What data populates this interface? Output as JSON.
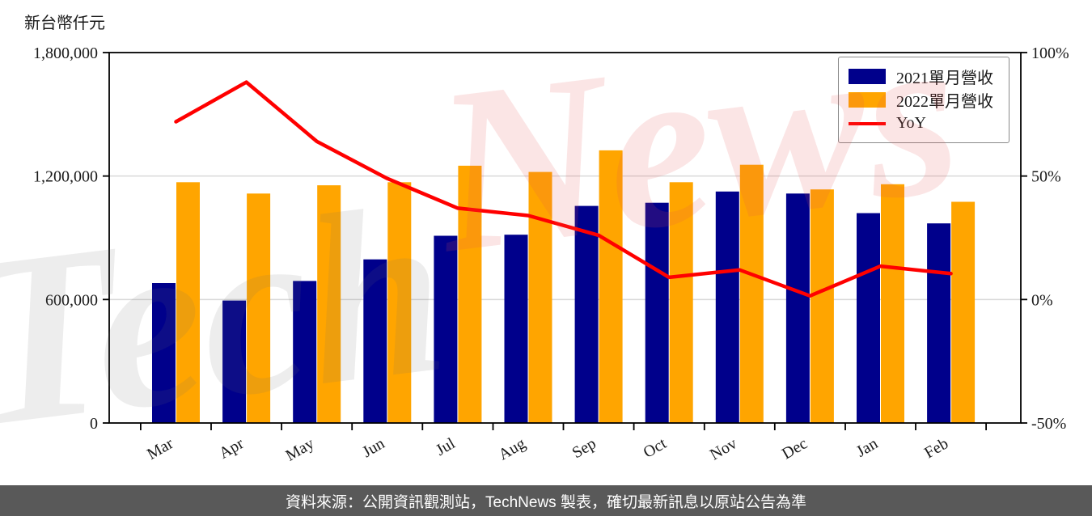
{
  "header": {
    "unit_label": "新台幣仟元"
  },
  "legend": {
    "items": [
      {
        "label": "2021單月營收",
        "color": "#00008B",
        "type": "bar"
      },
      {
        "label": "2022單月營收",
        "color": "#FFA500",
        "type": "bar"
      },
      {
        "label": "YoY",
        "color": "#FF0000",
        "type": "line"
      }
    ]
  },
  "watermark": {
    "part1": "Tech",
    "part2": "News"
  },
  "footer": {
    "text": "資料來源：公開資訊觀測站，TechNews 製表，確切最新訊息以原站公告為準",
    "background": "#595959",
    "text_color": "#ffffff"
  },
  "chart_data": {
    "type": "bar",
    "title": "",
    "xlabel": "",
    "ylabel": "新台幣仟元",
    "categories": [
      "Mar",
      "Apr",
      "May",
      "Jun",
      "Jul",
      "Aug",
      "Sep",
      "Oct",
      "Nov",
      "Dec",
      "Jan",
      "Feb"
    ],
    "series": [
      {
        "name": "2021單月營收",
        "type": "bar",
        "axis": "left",
        "color": "#00008B",
        "values": [
          680000,
          595000,
          690000,
          795000,
          910000,
          915000,
          1055000,
          1070000,
          1125000,
          1115000,
          1020000,
          970000
        ]
      },
      {
        "name": "2022單月營收",
        "type": "bar",
        "axis": "left",
        "color": "#FFA500",
        "values": [
          1170000,
          1115000,
          1155000,
          1170000,
          1250000,
          1220000,
          1325000,
          1170000,
          1255000,
          1135000,
          1160000,
          1075000
        ]
      },
      {
        "name": "YoY",
        "type": "line",
        "axis": "right",
        "color": "#FF0000",
        "unit": "%",
        "values": [
          72,
          88,
          64,
          49,
          37,
          34,
          26,
          9,
          12,
          1.5,
          13.5,
          10.5
        ]
      }
    ],
    "left_axis": {
      "range": [
        0,
        1800000
      ],
      "ticks": [
        0,
        600000,
        1200000,
        1800000
      ],
      "tick_labels": [
        "0",
        "600,000",
        "1,200,000",
        "1,800,000"
      ]
    },
    "right_axis": {
      "range": [
        -50,
        100
      ],
      "ticks": [
        -50,
        0,
        50,
        100
      ],
      "tick_labels": [
        "-50%",
        "0%",
        "50%",
        "100%"
      ]
    },
    "grid": "horizontal",
    "grid_color": "#d9d9d9",
    "frame_color": "#000000",
    "legend_position": "top-right"
  }
}
